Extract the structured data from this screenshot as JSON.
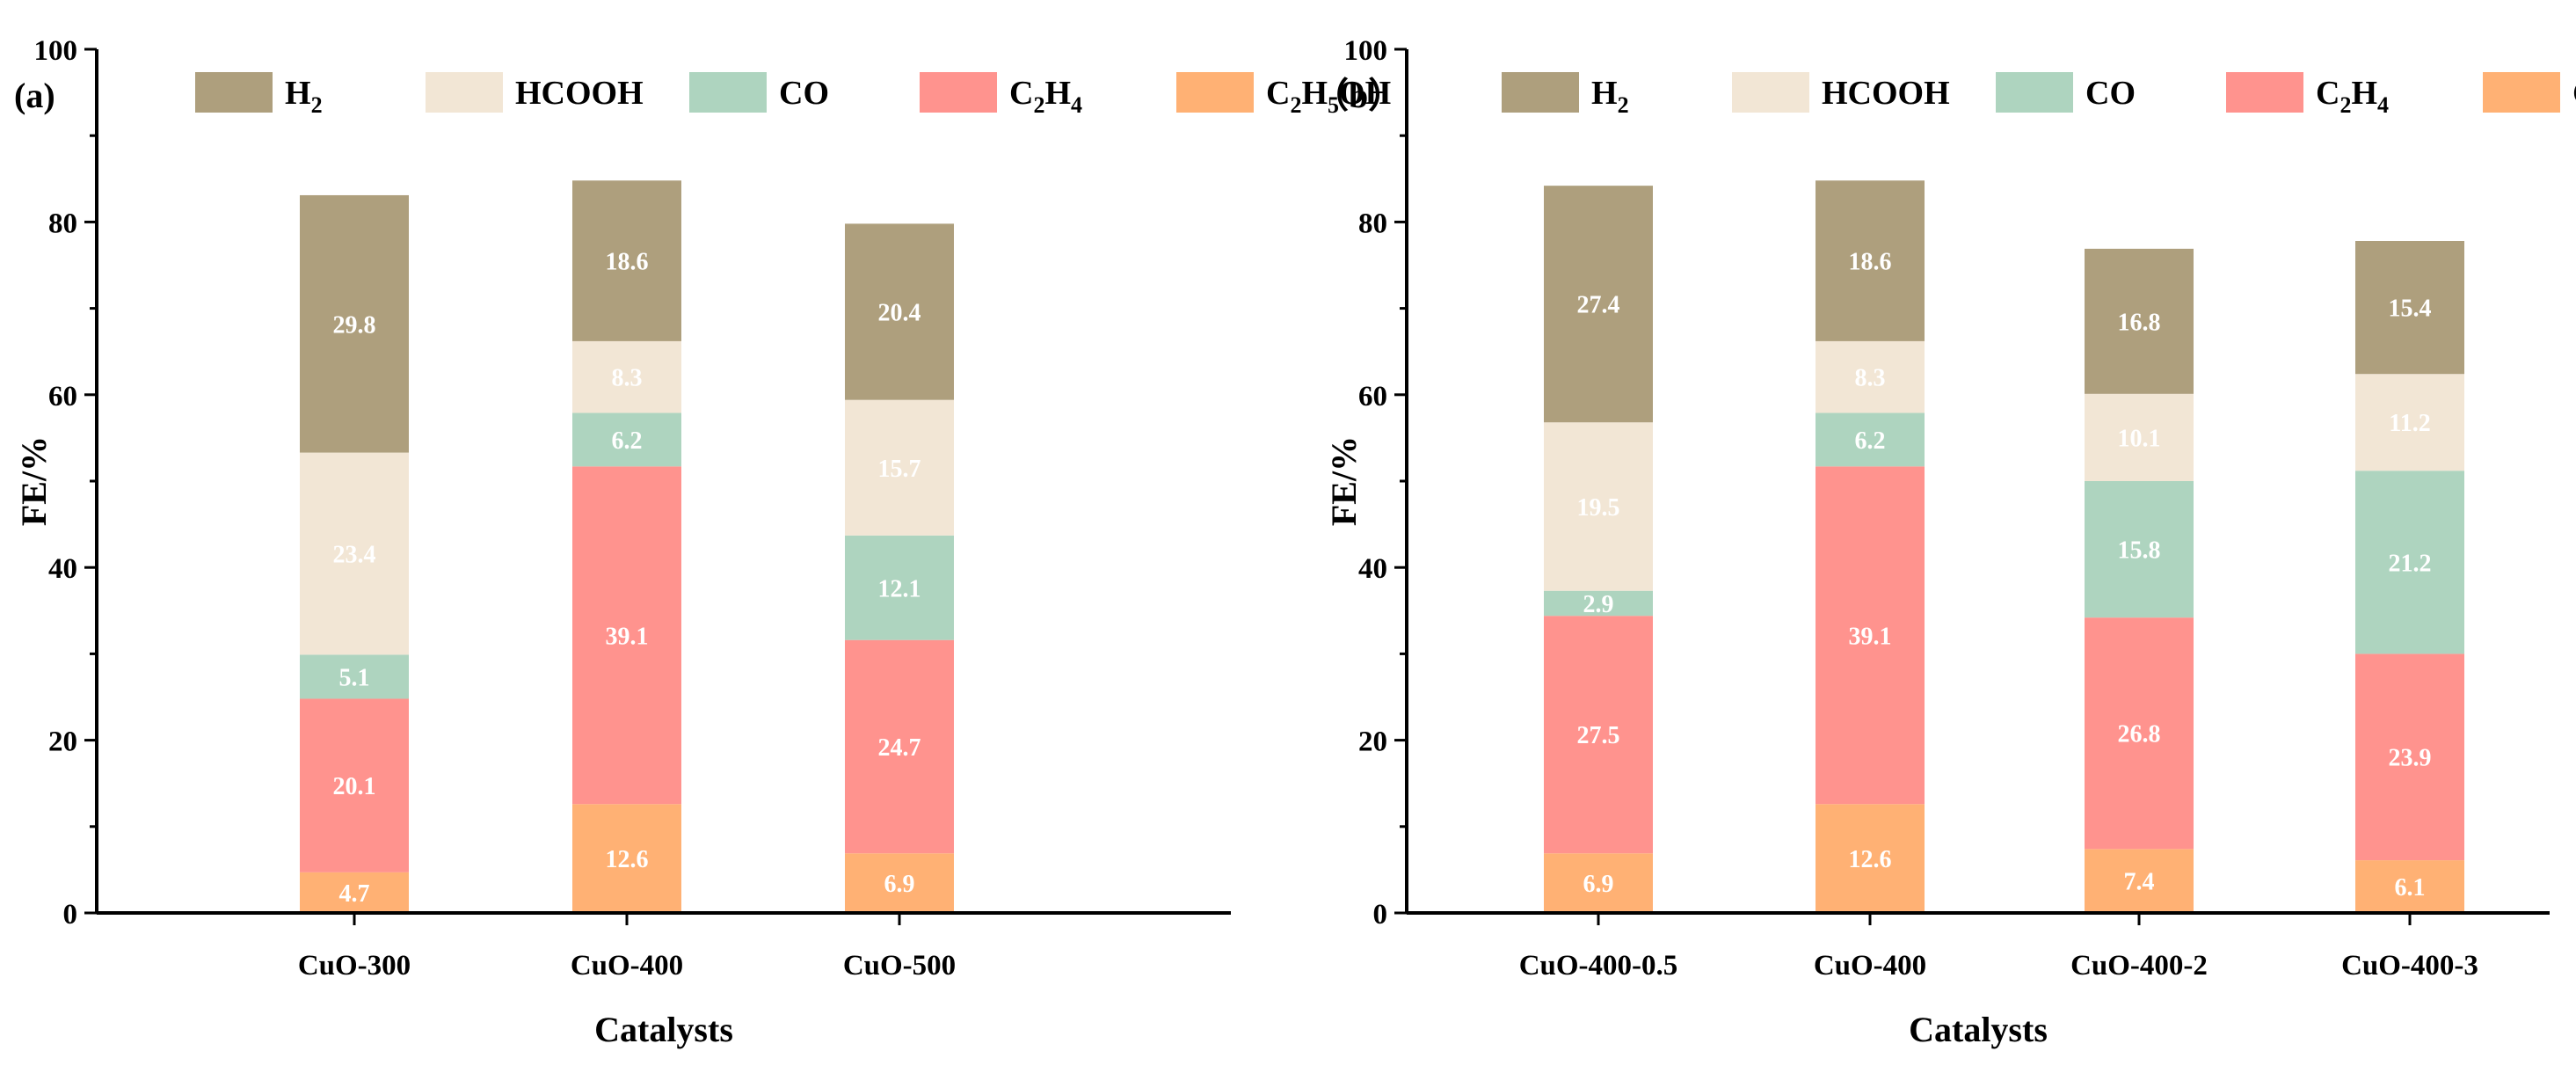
{
  "colors": {
    "H2": "#ae9f7d",
    "HCOOH": "#f2e6d5",
    "CO": "#aed4bf",
    "C2H4": "#ff938e",
    "C2H5OH": "#ffb174",
    "axis": "#000000",
    "segment_text": "#ffffff"
  },
  "legend": [
    {
      "key": "H2",
      "label": "H",
      "sub": "2",
      "tail": ""
    },
    {
      "key": "HCOOH",
      "label": "HCOOH",
      "sub": "",
      "tail": ""
    },
    {
      "key": "CO",
      "label": "CO",
      "sub": "",
      "tail": ""
    },
    {
      "key": "C2H4",
      "label": "C",
      "sub": "2",
      "tail": "H",
      "sub2": "4"
    },
    {
      "key": "C2H5OH",
      "label": "C",
      "sub": "2",
      "tail": "H",
      "sub2": "5",
      "tail2": "OH"
    }
  ],
  "chart_data": [
    {
      "panel": "(a)",
      "type": "bar",
      "stacked": true,
      "xlabel": "Catalysts",
      "ylabel": "FE/%",
      "ylim": [
        0,
        100
      ],
      "yticks": [
        0,
        20,
        40,
        60,
        80,
        100
      ],
      "categories": [
        "CuO-300",
        "CuO-400",
        "CuO-500"
      ],
      "series": [
        {
          "name": "C2H5OH",
          "values": [
            4.7,
            12.6,
            6.9
          ],
          "labels": [
            "4.7",
            "12.6",
            "6.9"
          ]
        },
        {
          "name": "C2H4",
          "values": [
            20.1,
            39.1,
            24.7
          ],
          "labels": [
            "20.1",
            "39.1",
            "24.7"
          ]
        },
        {
          "name": "CO",
          "values": [
            5.1,
            6.2,
            12.1
          ],
          "labels": [
            "5.1",
            "6.2",
            "12.1"
          ]
        },
        {
          "name": "HCOOH",
          "values": [
            23.4,
            8.3,
            15.7
          ],
          "labels": [
            "23.4",
            "8.3",
            "15.7"
          ]
        },
        {
          "name": "H2",
          "values": [
            29.8,
            18.6,
            20.4
          ],
          "labels": [
            "29.8",
            "18.6",
            "20.4"
          ]
        }
      ]
    },
    {
      "panel": "（b）",
      "type": "bar",
      "stacked": true,
      "xlabel": "Catalysts",
      "ylabel": "FE/%",
      "ylim": [
        0,
        100
      ],
      "yticks": [
        0,
        20,
        40,
        60,
        80,
        100
      ],
      "categories": [
        "CuO-400-0.5",
        "CuO-400",
        "CuO-400-2",
        "CuO-400-3"
      ],
      "series": [
        {
          "name": "C2H5OH",
          "values": [
            6.9,
            12.6,
            7.4,
            6.1
          ],
          "labels": [
            "6.9",
            "12.6",
            "7.4",
            "6.1"
          ]
        },
        {
          "name": "C2H4",
          "values": [
            27.5,
            39.1,
            26.8,
            23.9
          ],
          "labels": [
            "27.5",
            "39.1",
            "26.8",
            "23.9"
          ]
        },
        {
          "name": "CO",
          "values": [
            2.9,
            6.2,
            15.8,
            21.2
          ],
          "labels": [
            "2.9",
            "6.2",
            "15.8",
            "21.2"
          ]
        },
        {
          "name": "HCOOH",
          "values": [
            19.5,
            8.3,
            10.1,
            11.2
          ],
          "labels": [
            "19.5",
            "8.3",
            "10.1",
            "11.2"
          ]
        },
        {
          "name": "H2",
          "values": [
            27.4,
            18.6,
            16.8,
            15.4
          ],
          "labels": [
            "27.4",
            "18.6",
            "16.8",
            "15.4"
          ]
        }
      ]
    }
  ]
}
